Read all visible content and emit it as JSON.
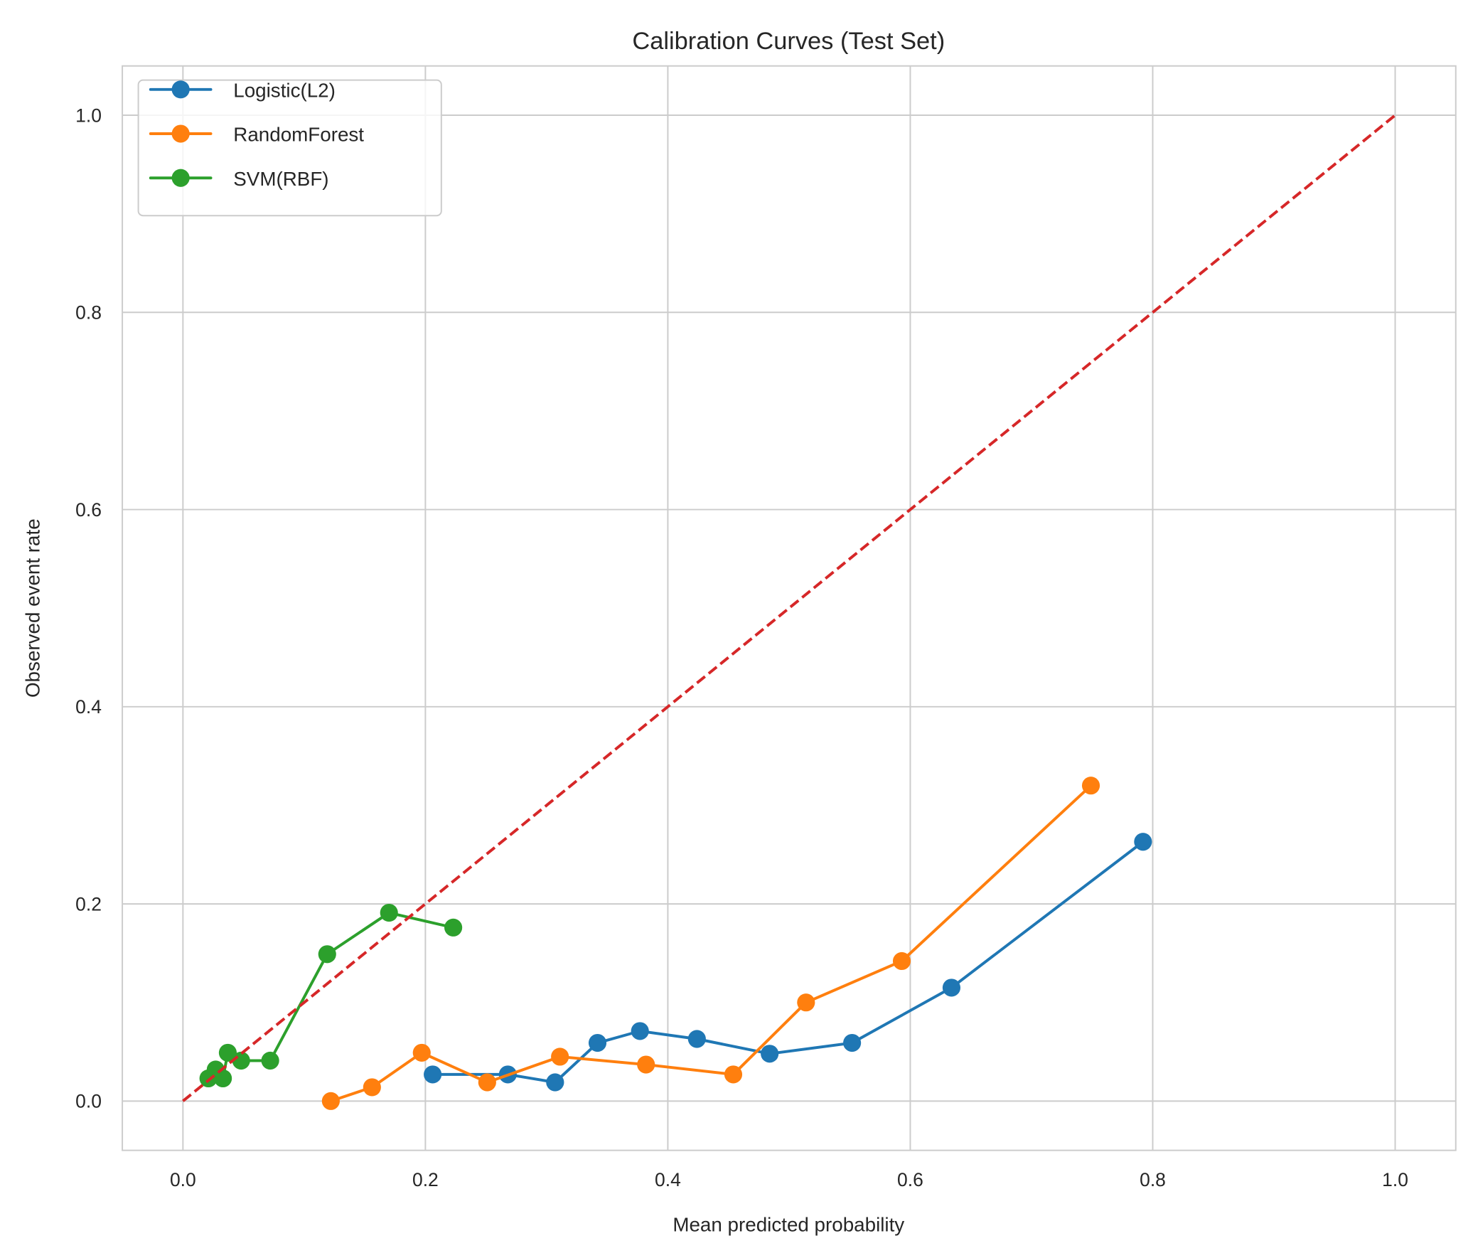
{
  "chart_data": {
    "type": "line",
    "title": "Calibration Curves (Test Set)",
    "xlabel": "Mean predicted probability",
    "ylabel": "Observed event rate",
    "xlim": [
      -0.05,
      1.05
    ],
    "ylim": [
      -0.05,
      1.05
    ],
    "xticks": [
      "0.0",
      "0.2",
      "0.4",
      "0.6",
      "0.8",
      "1.0"
    ],
    "yticks": [
      "0.0",
      "0.2",
      "0.4",
      "0.6",
      "0.8",
      "1.0"
    ],
    "grid": true,
    "legend_position": "top-left",
    "reference_line": {
      "x": [
        0,
        1
      ],
      "y": [
        0,
        1
      ],
      "color": "#d62728",
      "style": "dashed"
    },
    "series": [
      {
        "name": "Logistic(L2)",
        "color": "#1f77b4",
        "x": [
          0.206,
          0.268,
          0.307,
          0.342,
          0.377,
          0.424,
          0.484,
          0.552,
          0.634,
          0.792
        ],
        "y": [
          0.027,
          0.027,
          0.019,
          0.059,
          0.071,
          0.063,
          0.048,
          0.059,
          0.115,
          0.263
        ]
      },
      {
        "name": "RandomForest",
        "color": "#ff7f0e",
        "x": [
          0.122,
          0.156,
          0.197,
          0.251,
          0.311,
          0.382,
          0.454,
          0.514,
          0.593,
          0.749
        ],
        "y": [
          0.0,
          0.014,
          0.049,
          0.019,
          0.045,
          0.037,
          0.027,
          0.1,
          0.142,
          0.32
        ]
      },
      {
        "name": "SVM(RBF)",
        "color": "#2ca02c",
        "x": [
          0.021,
          0.027,
          0.033,
          0.037,
          0.048,
          0.072,
          0.119,
          0.17,
          0.223
        ],
        "y": [
          0.023,
          0.032,
          0.023,
          0.049,
          0.041,
          0.041,
          0.149,
          0.191,
          0.176
        ]
      }
    ]
  }
}
